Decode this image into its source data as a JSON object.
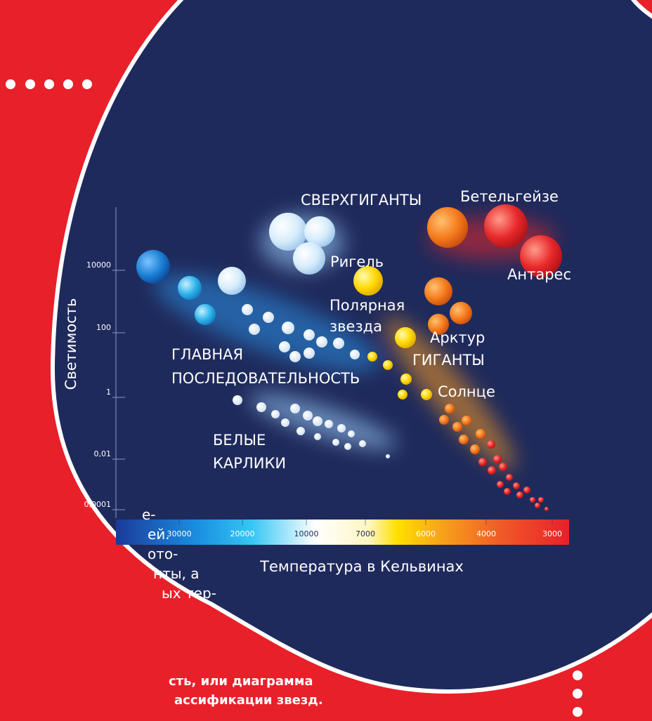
{
  "y_axis": {
    "label": "Светимость",
    "ticks": [
      "10000",
      "100",
      "1",
      "0,01",
      "0,0001"
    ]
  },
  "x_axis": {
    "label": "Температура в Кельвинах",
    "ticks": [
      "30000",
      "20000",
      "10000",
      "7000",
      "6000",
      "4000",
      "3000"
    ]
  },
  "regions": {
    "supergiants": "СВЕРХГИГАНТЫ",
    "main_sequence": [
      "ГЛАВНАЯ",
      "ПОСЛЕДОВАТЕЛЬНОСТЬ"
    ],
    "white_dwarfs": [
      "БЕЛЫЕ",
      "КАРЛИКИ"
    ],
    "giants": "ГИГАНТЫ"
  },
  "stars": {
    "betelgeuse": "Бетельгейзе",
    "rigel": "Ригель",
    "antares": "Антарес",
    "polaris": [
      "Полярная",
      "звезда"
    ],
    "arcturus": "Арктур",
    "sun": "Солнце"
  },
  "side_text": [
    "е-",
    "ей.",
    "ото-",
    "нты, а",
    "ых тер-"
  ],
  "caption": [
    "сть, или диаграмма",
    "ассификации звезд."
  ]
}
